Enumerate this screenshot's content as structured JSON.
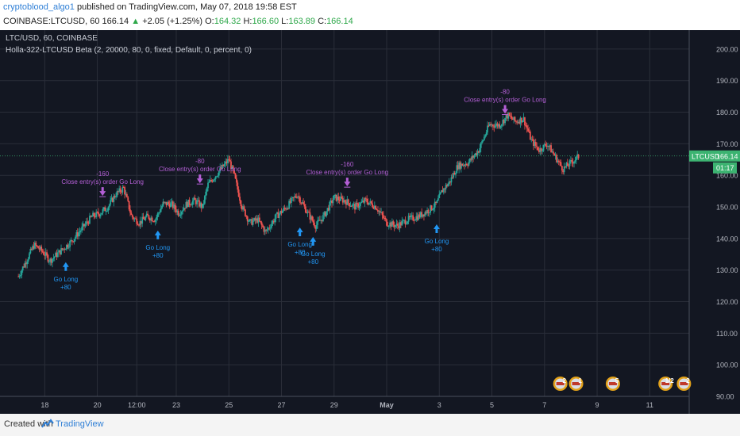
{
  "header": {
    "author": "cryptoblood_algo1",
    "published": "published on TradingView.com, May 07, 2018 19:58 EST",
    "symbol": "COINBASE:LTCUSD, 60",
    "last": "166.14",
    "arrow": "▲",
    "change": "+2.05 (+1.25%)",
    "o_label": "O:",
    "o": "164.32",
    "h_label": "H:",
    "h": "166.60",
    "l_label": "L:",
    "l": "163.89",
    "c_label": "C:",
    "c": "166.14"
  },
  "legend": {
    "line1": "LTC/USD, 60, COINBASE",
    "line2": "Holla-322-LTCUSD Beta (2, 20000, 80, 0, fixed, Default, 0, percent, 0)"
  },
  "chart_data": {
    "type": "candlestick",
    "y_ticks": [
      "200.00",
      "190.00",
      "180.00",
      "170.00",
      "160.00",
      "150.00",
      "140.00",
      "130.00",
      "120.00",
      "110.00",
      "100.00",
      "90.00"
    ],
    "ylim": [
      90,
      206
    ],
    "x_ticks": [
      {
        "label": "18",
        "day": 18
      },
      {
        "label": "20",
        "day": 20
      },
      {
        "label": "12:00",
        "day": 21.5
      },
      {
        "label": "23",
        "day": 23
      },
      {
        "label": "25",
        "day": 25
      },
      {
        "label": "27",
        "day": 27
      },
      {
        "label": "29",
        "day": 29
      },
      {
        "label": "May",
        "day": 31
      },
      {
        "label": "3",
        "day": 33
      },
      {
        "label": "5",
        "day": 35
      },
      {
        "label": "7",
        "day": 37
      },
      {
        "label": "9",
        "day": 39
      },
      {
        "label": "11",
        "day": 41
      }
    ],
    "close_path": [
      [
        17.0,
        128
      ],
      [
        17.3,
        133
      ],
      [
        17.6,
        138
      ],
      [
        17.9,
        136
      ],
      [
        18.2,
        133
      ],
      [
        18.6,
        136
      ],
      [
        19.0,
        139
      ],
      [
        19.4,
        143
      ],
      [
        19.8,
        147
      ],
      [
        20.1,
        148
      ],
      [
        20.4,
        150
      ],
      [
        20.7,
        154
      ],
      [
        21.0,
        156
      ],
      [
        21.3,
        147
      ],
      [
        21.6,
        145
      ],
      [
        21.9,
        147
      ],
      [
        22.2,
        146
      ],
      [
        22.5,
        151
      ],
      [
        22.8,
        151
      ],
      [
        23.1,
        148
      ],
      [
        23.4,
        151
      ],
      [
        23.7,
        152
      ],
      [
        24.0,
        150
      ],
      [
        24.2,
        157
      ],
      [
        24.5,
        160
      ],
      [
        24.8,
        163
      ],
      [
        25.0,
        165
      ],
      [
        25.2,
        160
      ],
      [
        25.5,
        150
      ],
      [
        25.8,
        145
      ],
      [
        26.1,
        146
      ],
      [
        26.4,
        142
      ],
      [
        26.8,
        147
      ],
      [
        27.2,
        150
      ],
      [
        27.6,
        154
      ],
      [
        28.0,
        148
      ],
      [
        28.3,
        144
      ],
      [
        28.6,
        147
      ],
      [
        29.0,
        153
      ],
      [
        29.4,
        152
      ],
      [
        29.8,
        150
      ],
      [
        30.2,
        152
      ],
      [
        30.6,
        150
      ],
      [
        31.0,
        145
      ],
      [
        31.4,
        144
      ],
      [
        31.8,
        146
      ],
      [
        32.2,
        147
      ],
      [
        32.6,
        149
      ],
      [
        32.9,
        151
      ],
      [
        33.1,
        155
      ],
      [
        33.4,
        158
      ],
      [
        33.7,
        163
      ],
      [
        34.1,
        164
      ],
      [
        34.5,
        168
      ],
      [
        34.9,
        176
      ],
      [
        35.3,
        176
      ],
      [
        35.6,
        179
      ],
      [
        35.9,
        177
      ],
      [
        36.2,
        178
      ],
      [
        36.5,
        171
      ],
      [
        36.8,
        168
      ],
      [
        37.1,
        170
      ],
      [
        37.4,
        166
      ],
      [
        37.7,
        162
      ],
      [
        38.0,
        164
      ],
      [
        38.3,
        166
      ]
    ],
    "last_price": 166.14,
    "price_label": "LTCUSD",
    "price_value": "166.14",
    "countdown": "01:17",
    "annotations": {
      "entries": [
        {
          "label": "Go Long",
          "qty": "+80",
          "day": 18.8,
          "price": 134
        },
        {
          "label": "Go Long",
          "qty": "+80",
          "day": 22.3,
          "price": 144
        },
        {
          "label": "Go Long",
          "qty": "+80",
          "day": 27.7,
          "price": 145
        },
        {
          "label": "Go Long",
          "qty": "+80",
          "day": 28.2,
          "price": 142
        },
        {
          "label": "Go Long",
          "qty": "+80",
          "day": 32.9,
          "price": 146
        }
      ],
      "exits": [
        {
          "label": "Close entry(s) order Go Long",
          "qty": "-160",
          "day": 20.2,
          "price": 152
        },
        {
          "label": "Close entry(s) order Go Long",
          "qty": "-80",
          "day": 23.9,
          "price": 156
        },
        {
          "label": "Close entry(s) order Go Long",
          "qty": "-160",
          "day": 29.5,
          "price": 155
        },
        {
          "label": "Close entry(s) order Go Long",
          "qty": "-80",
          "day": 35.5,
          "price": 178
        }
      ]
    },
    "events": [
      "2",
      "1",
      "5",
      "1/2",
      "2"
    ]
  },
  "footer": {
    "created": "Created with",
    "brand": "TradingView"
  },
  "colors": {
    "bg": "#131722",
    "grid": "#2a2e39",
    "up": "#26a69a",
    "down": "#ef5350",
    "entry": "#2196f3",
    "exit": "#b45fd6",
    "price": "#3cb371"
  }
}
